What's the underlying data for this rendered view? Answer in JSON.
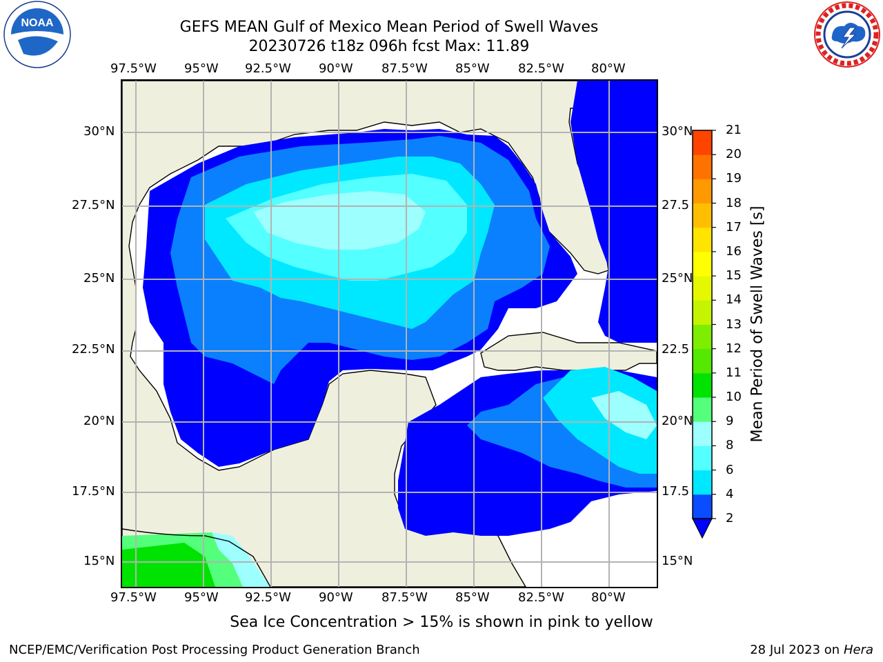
{
  "title": {
    "line1": "GEFS MEAN Gulf of Mexico Mean Period of Swell Waves",
    "line2": "20230726 t18z 096h fcst   Max: 11.89"
  },
  "logos": {
    "left": {
      "text": "NOAA",
      "ring_text": "NATIONAL OCEANIC AND ATMOSPHERIC ADMINISTRATION · U.S. DEPARTMENT OF COMMERCE"
    },
    "right": {
      "ring_text": "NATIONAL WEATHER SERVICE"
    }
  },
  "map": {
    "lon_labels": [
      "97.5°W",
      "95°W",
      "92.5°W",
      "90°W",
      "87.5°W",
      "85°W",
      "82.5°W",
      "80°W"
    ],
    "lat_labels_left": [
      "30°N",
      "27.5°N",
      "25°N",
      "22.5°N",
      "20°N",
      "17.5°N",
      "15°N"
    ],
    "lat_labels_right": [
      "30°N",
      "27.5",
      "25°N",
      "22.5",
      "20°N",
      "17.5",
      "15°N"
    ],
    "colors": {
      "land": "#efefde",
      "ocean_no_data": "#ffffff",
      "grid": "#b3b3b3",
      "coast": "#000000"
    }
  },
  "colorbar": {
    "title": "Mean Period of Swell Waves [s]",
    "tick_labels": [
      "2",
      "4",
      "6",
      "8",
      "9",
      "10",
      "11",
      "12",
      "13",
      "14",
      "15",
      "16",
      "17",
      "18",
      "19",
      "20",
      "21"
    ],
    "colors": [
      "#0a4cff",
      "#00e8ff",
      "#54ffff",
      "#9effff",
      "#54ff7c",
      "#00e300",
      "#55e800",
      "#7dee00",
      "#c4f400",
      "#e5f800",
      "#ffff00",
      "#ffe400",
      "#ffbf00",
      "#ff9900",
      "#ff7200",
      "#ff4400",
      "#ff0000"
    ],
    "extend_color": "#0000ff"
  },
  "footer": {
    "note": "Sea Ice Concentration > 15% is shown in pink to yellow",
    "left": "NCEP/EMC/Verification Post Processing Product Generation Branch",
    "date": "28 Jul 2023 on ",
    "machine": "Hera"
  }
}
